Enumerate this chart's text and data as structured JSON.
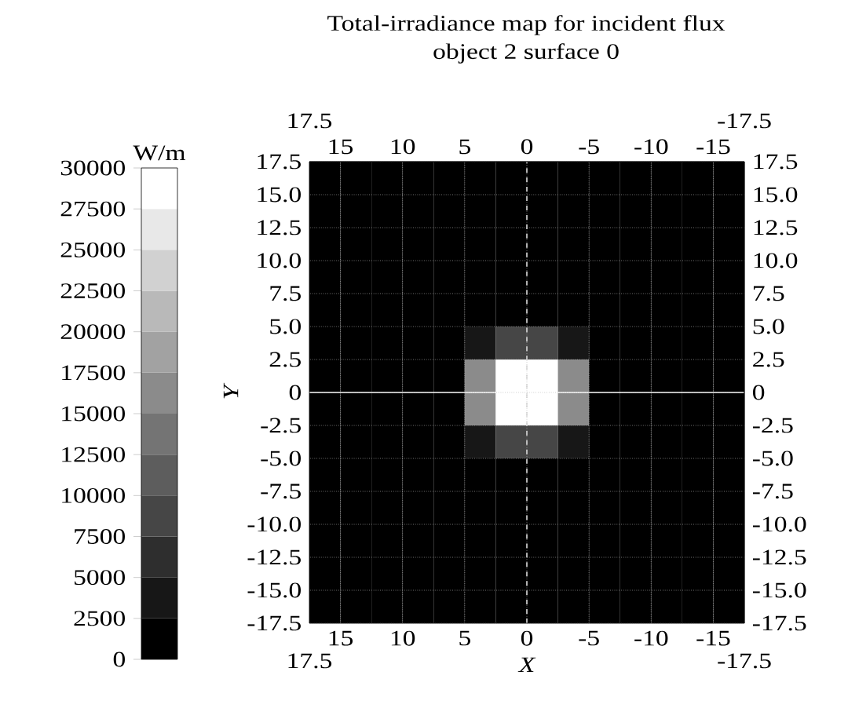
{
  "chart_data": {
    "type": "heatmap",
    "title": "Total-irradiance map for incident flux",
    "subtitle": "object 2 surface 0",
    "xlabel": "X",
    "ylabel": "Y",
    "clabel": "W/m",
    "x": [
      16.25,
      13.75,
      11.25,
      8.75,
      6.25,
      3.75,
      1.25,
      -1.25,
      -3.75,
      -6.25,
      -8.75,
      -11.25,
      -13.75,
      -16.25
    ],
    "y": [
      16.25,
      13.75,
      11.25,
      8.75,
      6.25,
      3.75,
      1.25,
      -1.25,
      -3.75,
      -6.25,
      -8.75,
      -11.25,
      -13.75,
      -16.25
    ],
    "cells": [
      [
        1000,
        1000,
        1000,
        1000,
        1000,
        1000,
        1000,
        1000,
        1000,
        1000,
        1000,
        1000,
        1000,
        1000
      ],
      [
        1000,
        1000,
        1000,
        1000,
        1000,
        1000,
        1000,
        1000,
        1000,
        1000,
        1000,
        1000,
        1000,
        1000
      ],
      [
        1000,
        1000,
        1000,
        1000,
        1000,
        1000,
        1000,
        1000,
        1000,
        1000,
        1000,
        1000,
        1000,
        1000
      ],
      [
        1000,
        1000,
        1000,
        1000,
        1000,
        1000,
        1000,
        1000,
        1000,
        1000,
        1000,
        1000,
        1000,
        1000
      ],
      [
        1000,
        1000,
        1000,
        1000,
        1000,
        1000,
        1000,
        1000,
        1000,
        1000,
        1000,
        1000,
        1000,
        1000
      ],
      [
        1000,
        1000,
        1000,
        1000,
        1000,
        4000,
        7500,
        7500,
        4000,
        1000,
        1000,
        1000,
        1000,
        1000
      ],
      [
        1000,
        1000,
        1000,
        1000,
        1000,
        15000,
        29000,
        29000,
        15000,
        1000,
        1000,
        1000,
        1000,
        1000
      ],
      [
        1000,
        1000,
        1000,
        1000,
        1000,
        15000,
        29000,
        29000,
        15000,
        1000,
        1000,
        1000,
        1000,
        1000
      ],
      [
        1000,
        1000,
        1000,
        1000,
        1000,
        4000,
        7500,
        7500,
        4000,
        1000,
        1000,
        1000,
        1000,
        1000
      ],
      [
        1000,
        1000,
        1000,
        1000,
        1000,
        1000,
        1000,
        1000,
        1000,
        1000,
        1000,
        1000,
        1000,
        1000
      ],
      [
        1000,
        1000,
        1000,
        1000,
        1000,
        1000,
        1000,
        1000,
        1000,
        1000,
        1000,
        1000,
        1000,
        1000
      ],
      [
        1000,
        1000,
        1000,
        1000,
        1000,
        1000,
        1000,
        1000,
        1000,
        1000,
        1000,
        1000,
        1000,
        1000
      ],
      [
        1000,
        1000,
        1000,
        1000,
        1000,
        1000,
        1000,
        1000,
        1000,
        1000,
        1000,
        1000,
        1000,
        1000
      ],
      [
        1000,
        1000,
        1000,
        1000,
        1000,
        1000,
        1000,
        1000,
        1000,
        1000,
        1000,
        1000,
        1000,
        1000
      ]
    ],
    "clim": [
      0,
      30000
    ],
    "cticks": [
      0,
      2500,
      5000,
      7500,
      10000,
      12500,
      15000,
      17500,
      20000,
      22500,
      25000,
      27500,
      30000
    ],
    "xlim": [
      17.5,
      -17.5
    ],
    "xticks": [
      15,
      10,
      5,
      0,
      -5,
      -10,
      -15
    ],
    "x2lim": [
      17.5,
      -17.5
    ],
    "x2ticks": [
      15,
      10,
      5,
      0,
      -5,
      -10,
      -15
    ],
    "annotations": [
      "17.5",
      "-17.5",
      "17.5",
      "-17.5"
    ],
    "ylim": [
      -17.5,
      17.5
    ],
    "yticks": [
      -17.5,
      {
        "value": -15,
        "label": "-15.0"
      },
      -12.5,
      {
        "value": -10,
        "label": "-10.0"
      },
      -7.5,
      {
        "value": -5,
        "label": "-5.0"
      },
      -2.5,
      0,
      2.5,
      {
        "value": 5,
        "label": "5.0"
      },
      7.5,
      {
        "value": 10,
        "label": "10.0"
      },
      12.5,
      {
        "value": 15,
        "label": "15.0"
      },
      17.5
    ],
    "y2lim": [
      -17.5,
      17.5
    ],
    "y2ticks": [
      -17.5,
      {
        "value": -15,
        "label": "-15.0"
      },
      -12.5,
      {
        "value": -10,
        "label": "-10.0"
      },
      -7.5,
      {
        "value": -5,
        "label": "-5.0"
      },
      -2.5,
      0,
      2.5,
      {
        "value": 5,
        "label": "5.0"
      },
      7.5,
      {
        "value": 10,
        "label": "10.0"
      },
      12.5,
      {
        "value": 15,
        "label": "15.0"
      },
      17.5
    ],
    "grid": true,
    "ref_lines": [
      {
        "axis": "y",
        "value": 0,
        "color": "#ffffff",
        "line_style": "solid"
      },
      {
        "axis": "x",
        "value": 0,
        "color": "#dddddd",
        "line_style": "dashed"
      }
    ]
  }
}
